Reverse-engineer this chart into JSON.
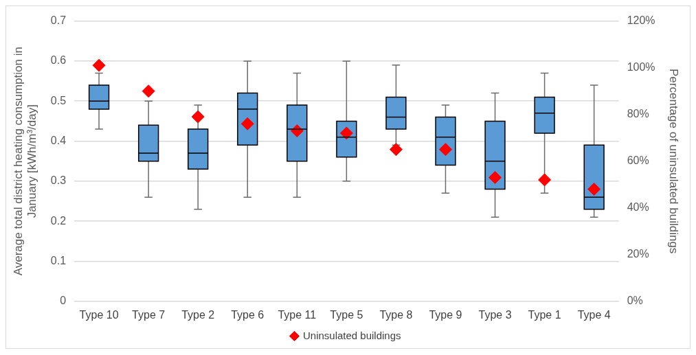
{
  "chart_data": {
    "type": "box",
    "ylabel": "Average total district heating consumption in January [kWh/m³/day]",
    "y2label": "Percentage of uninsulated buildings",
    "categories": [
      "Type 10",
      "Type 7",
      "Type 2",
      "Type 6",
      "Type 11",
      "Type 5",
      "Type 8",
      "Type 9",
      "Type 3",
      "Type 1",
      "Type 4"
    ],
    "series": [
      {
        "color": "#5b9bd5",
        "boxes": [
          {
            "low": 0.43,
            "q1": 0.48,
            "median": 0.5,
            "q3": 0.54,
            "high": 0.57
          },
          {
            "low": 0.26,
            "q1": 0.35,
            "median": 0.37,
            "q3": 0.44,
            "high": 0.5
          },
          {
            "low": 0.23,
            "q1": 0.33,
            "median": 0.37,
            "q3": 0.43,
            "high": 0.49
          },
          {
            "low": 0.26,
            "q1": 0.39,
            "median": 0.48,
            "q3": 0.52,
            "high": 0.6
          },
          {
            "low": 0.26,
            "q1": 0.35,
            "median": 0.43,
            "q3": 0.49,
            "high": 0.57
          },
          {
            "low": 0.3,
            "q1": 0.36,
            "median": 0.41,
            "q3": 0.45,
            "high": 0.6
          },
          {
            "low": 0.39,
            "q1": 0.43,
            "median": 0.46,
            "q3": 0.51,
            "high": 0.59
          },
          {
            "low": 0.27,
            "q1": 0.34,
            "median": 0.41,
            "q3": 0.46,
            "high": 0.49
          },
          {
            "low": 0.21,
            "q1": 0.28,
            "median": 0.35,
            "q3": 0.45,
            "high": 0.52
          },
          {
            "low": 0.27,
            "q1": 0.42,
            "median": 0.47,
            "q3": 0.51,
            "high": 0.57
          },
          {
            "low": 0.21,
            "q1": 0.23,
            "median": 0.26,
            "q3": 0.39,
            "high": 0.54
          }
        ]
      },
      {
        "type": "scatter",
        "name": "Uninsulated buildings",
        "color": "#ff0000",
        "axis": "y2",
        "marker": "diamond",
        "x": [
          "Type 10",
          "Type 7",
          "Type 2",
          "Type 6",
          "Type 11",
          "Type 5",
          "Type 8",
          "Type 9",
          "Type 3",
          "Type 1",
          "Type 4"
        ],
        "values": [
          101,
          90,
          79,
          76,
          73,
          72,
          65,
          65,
          53,
          52,
          48
        ]
      }
    ],
    "ylim": [
      0,
      0.7
    ],
    "yticks": [
      0,
      0.1,
      0.2,
      0.3,
      0.4,
      0.5,
      0.6,
      0.7
    ],
    "y2lim": [
      0,
      120
    ],
    "y2ticks": [
      {
        "value": 0,
        "label": "0%"
      },
      {
        "value": 20,
        "label": "20%"
      },
      {
        "value": 40,
        "label": "40%"
      },
      {
        "value": 60,
        "label": "60%"
      },
      {
        "value": 80,
        "label": "80%"
      },
      {
        "value": 100,
        "label": "100%"
      },
      {
        "value": 120,
        "label": "120%"
      }
    ],
    "grid": "y",
    "legend": "bottom"
  }
}
